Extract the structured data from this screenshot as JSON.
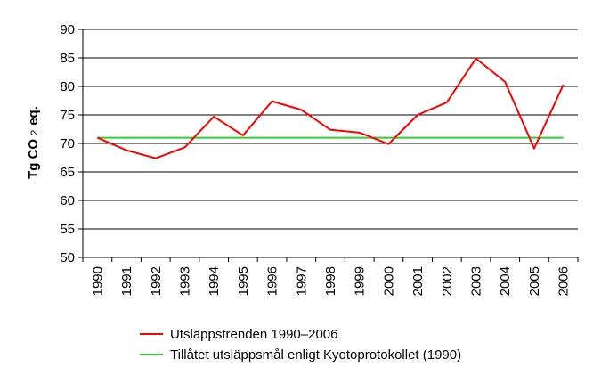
{
  "chart_data": {
    "type": "line",
    "title": "",
    "xlabel": "",
    "ylabel": {
      "main": "Tg CO",
      "sub": "2",
      "suffix": "eq."
    },
    "ylim": [
      50,
      90
    ],
    "yticks": [
      50,
      55,
      60,
      65,
      70,
      75,
      80,
      85,
      90
    ],
    "grid": true,
    "legend_position": "bottom",
    "categories": [
      "1990",
      "1991",
      "1992",
      "1993",
      "1994",
      "1995",
      "1996",
      "1997",
      "1998",
      "1999",
      "2000",
      "2001",
      "2002",
      "2003",
      "2004",
      "2005",
      "2006"
    ],
    "series": [
      {
        "name": "Utsläppstrenden 1990–2006",
        "color": "#ff0000",
        "values": [
          71.0,
          68.8,
          67.4,
          69.3,
          74.7,
          71.4,
          77.4,
          75.9,
          72.4,
          71.9,
          69.9,
          75.0,
          77.2,
          84.9,
          80.8,
          69.1,
          80.3
        ]
      },
      {
        "name": "Tillåtet utsläppsmål enligt Kyotoprotokollet (1990)",
        "color": "#33cc33",
        "values": [
          71.0,
          71.0,
          71.0,
          71.0,
          71.0,
          71.0,
          71.0,
          71.0,
          71.0,
          71.0,
          71.0,
          71.0,
          71.0,
          71.0,
          71.0,
          71.0,
          71.0
        ]
      }
    ]
  }
}
